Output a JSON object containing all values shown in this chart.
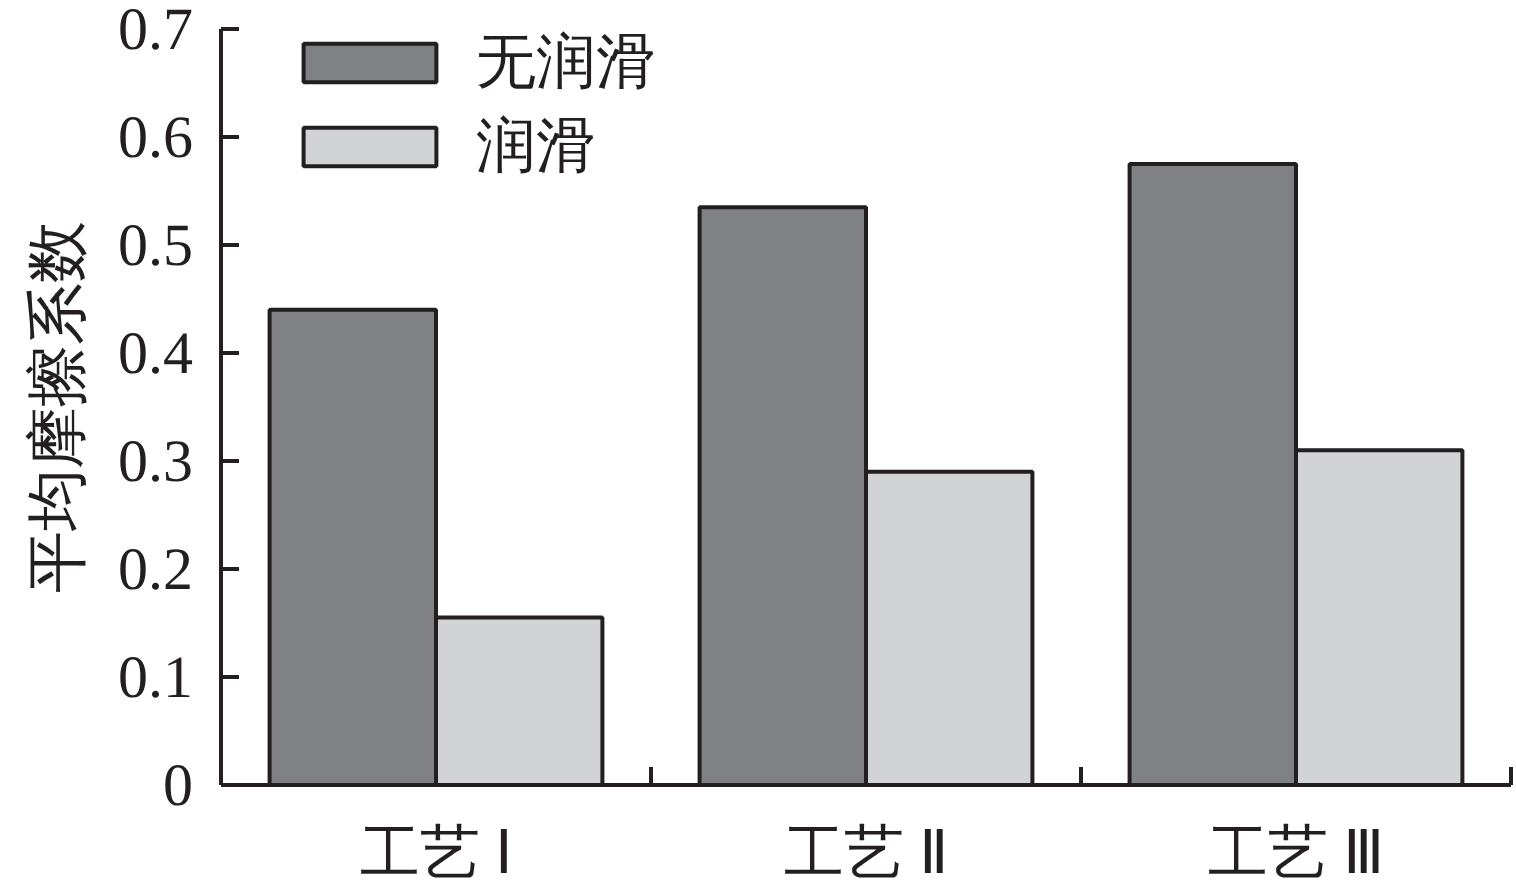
{
  "chart_data": {
    "type": "bar",
    "ylabel": "平均摩擦系数",
    "categories": [
      "工艺 Ⅰ",
      "工艺 Ⅱ",
      "工艺 Ⅲ"
    ],
    "series": [
      {
        "name": "无润滑",
        "color": "#808185",
        "values": [
          0.44,
          0.535,
          0.575
        ]
      },
      {
        "name": "润滑",
        "color": "#d2d3d5",
        "values": [
          0.155,
          0.29,
          0.31
        ]
      }
    ],
    "ylim": [
      0,
      0.7
    ],
    "yticks": [
      0,
      0.1,
      0.2,
      0.3,
      0.4,
      0.5,
      0.6,
      0.7
    ],
    "grid": false,
    "legend": "top left"
  }
}
